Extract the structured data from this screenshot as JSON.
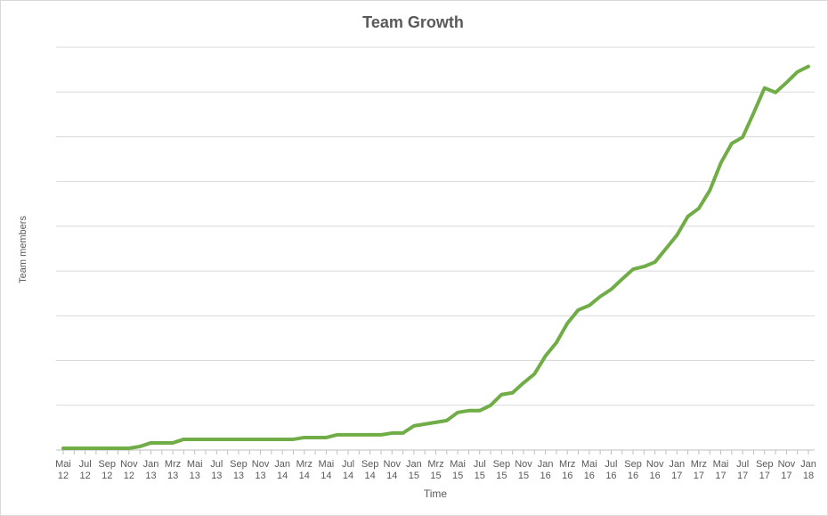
{
  "chart_data": {
    "type": "line",
    "title": "Team Growth",
    "x_label": "Time",
    "y_label": "Team members",
    "categories": [
      "Mai 12",
      null,
      "Jul 12",
      null,
      "Sep 12",
      null,
      "Nov 12",
      null,
      "Jan 13",
      null,
      "Mrz 13",
      null,
      "Mai 13",
      null,
      "Jul 13",
      null,
      "Sep 13",
      null,
      "Nov 13",
      null,
      "Jan 14",
      null,
      "Mrz 14",
      null,
      "Mai 14",
      null,
      "Jul 14",
      null,
      "Sep 14",
      null,
      "Nov 14",
      null,
      "Jan 15",
      null,
      "Mrz 15",
      null,
      "Mai 15",
      null,
      "Jul 15",
      null,
      "Sep 15",
      null,
      "Nov 15",
      null,
      "Jan 16",
      null,
      "Mrz 16",
      null,
      "Mai 16",
      null,
      "Jul 16",
      null,
      "Sep 16",
      null,
      "Nov 16",
      null,
      "Jan 17",
      null,
      "Mrz 17",
      null,
      "Mai 17",
      null,
      "Jul 17",
      null,
      "Sep 17",
      null,
      "Nov 17",
      null,
      "Jan 18"
    ],
    "series": [
      {
        "name": "Team members",
        "color": "#70ad47",
        "values": [
          0.4,
          0.4,
          0.4,
          0.4,
          0.4,
          0.4,
          0.4,
          0.8,
          1.6,
          1.6,
          1.6,
          2.4,
          2.4,
          2.4,
          2.4,
          2.4,
          2.4,
          2.4,
          2.4,
          2.4,
          2.4,
          2.4,
          2.8,
          2.8,
          2.8,
          3.4,
          3.4,
          3.4,
          3.4,
          3.4,
          3.8,
          3.8,
          5.4,
          5.8,
          6.2,
          6.6,
          8.4,
          8.8,
          8.8,
          10,
          12.4,
          12.8,
          15,
          17,
          21,
          24,
          28.3,
          31.3,
          32.3,
          34.3,
          35.9,
          38.2,
          40.4,
          41,
          42,
          45,
          48,
          52.2,
          54,
          58,
          64.1,
          68.5,
          69.9,
          75.3,
          80.9,
          79.9,
          82.1,
          84.5,
          85.7
        ]
      }
    ],
    "ylim": [
      0,
      90
    ],
    "yticks": [
      0,
      10,
      20,
      30,
      40,
      50,
      60,
      70,
      80,
      90
    ],
    "grid": true
  }
}
